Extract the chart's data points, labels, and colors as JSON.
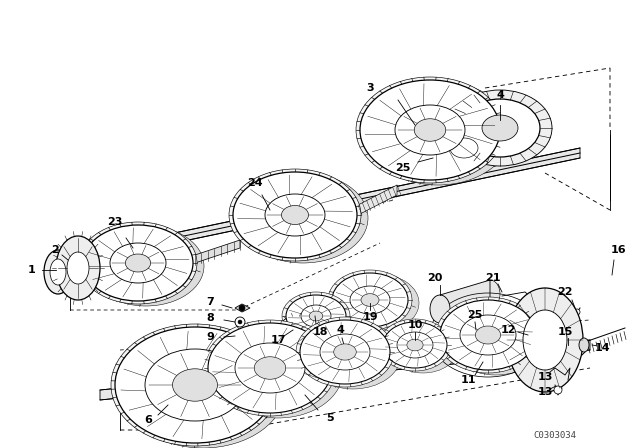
{
  "bg": "#ffffff",
  "lc": "#000000",
  "fig_w": 6.4,
  "fig_h": 4.48,
  "dpi": 100,
  "watermark": "C0303034"
}
